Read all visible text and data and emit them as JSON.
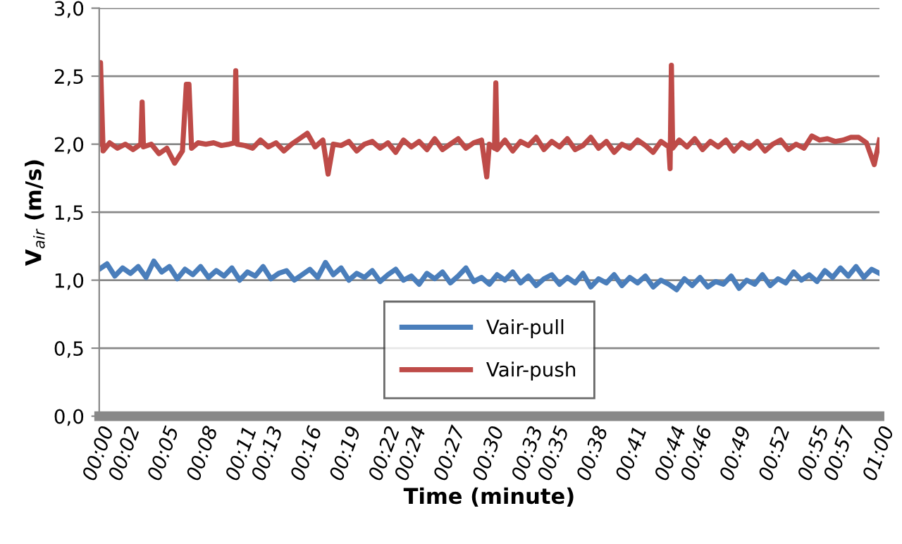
{
  "chart_data": {
    "type": "line",
    "xlabel": "Time (minute)",
    "ylabel": "V$_{air}$ (m/s)",
    "xlim": [
      0,
      60
    ],
    "ylim": [
      0,
      3
    ],
    "xticks": [
      {
        "value": 0,
        "label": "00:00"
      },
      {
        "value": 2,
        "label": "00:02"
      },
      {
        "value": 5,
        "label": "00:05"
      },
      {
        "value": 8,
        "label": "00:08"
      },
      {
        "value": 11,
        "label": "00:11"
      },
      {
        "value": 13,
        "label": "00:13"
      },
      {
        "value": 16,
        "label": "00:16"
      },
      {
        "value": 19,
        "label": "00:19"
      },
      {
        "value": 22,
        "label": "00:22"
      },
      {
        "value": 24,
        "label": "00:24"
      },
      {
        "value": 27,
        "label": "00:27"
      },
      {
        "value": 30,
        "label": "00:30"
      },
      {
        "value": 33,
        "label": "00:33"
      },
      {
        "value": 35,
        "label": "00:35"
      },
      {
        "value": 38,
        "label": "00:38"
      },
      {
        "value": 41,
        "label": "00:41"
      },
      {
        "value": 44,
        "label": "00:44"
      },
      {
        "value": 46,
        "label": "00:46"
      },
      {
        "value": 49,
        "label": "00:49"
      },
      {
        "value": 52,
        "label": "00:52"
      },
      {
        "value": 55,
        "label": "00:55"
      },
      {
        "value": 57,
        "label": "00:57"
      },
      {
        "value": 60,
        "label": "01:00"
      }
    ],
    "yticks": [
      {
        "value": 0,
        "label": "0,0"
      },
      {
        "value": 0.5,
        "label": "0,5"
      },
      {
        "value": 1,
        "label": "1,0"
      },
      {
        "value": 1.5,
        "label": "1,5"
      },
      {
        "value": 2,
        "label": "2,0"
      },
      {
        "value": 2.5,
        "label": "2,5"
      },
      {
        "value": 3,
        "label": "3,0"
      }
    ],
    "grid": "y",
    "legend": "bottom",
    "marker": "none",
    "line_style": "solid",
    "series": [
      {
        "name": "Vair-pull",
        "color": "#4a7ebb",
        "x": [
          0,
          0.6,
          1.2,
          1.8,
          2.4,
          3.0,
          3.6,
          4.2,
          4.8,
          5.4,
          6.0,
          6.6,
          7.2,
          7.8,
          8.4,
          9.0,
          9.6,
          10.2,
          10.8,
          11.4,
          12.0,
          12.6,
          13.2,
          13.8,
          14.4,
          15.0,
          15.6,
          16.2,
          16.8,
          17.4,
          18.0,
          18.6,
          19.2,
          19.8,
          20.4,
          21.0,
          21.6,
          22.2,
          22.8,
          23.4,
          24.0,
          24.6,
          25.2,
          25.8,
          26.4,
          27.0,
          27.6,
          28.2,
          28.8,
          29.4,
          30.0,
          30.6,
          31.2,
          31.8,
          32.4,
          33.0,
          33.6,
          34.2,
          34.8,
          35.4,
          36.0,
          36.6,
          37.2,
          37.8,
          38.4,
          39.0,
          39.6,
          40.2,
          40.8,
          41.4,
          42.0,
          42.6,
          43.2,
          43.8,
          44.4,
          45.0,
          45.6,
          46.2,
          46.8,
          47.4,
          48.0,
          48.6,
          49.2,
          49.8,
          50.4,
          51.0,
          51.6,
          52.2,
          52.8,
          53.4,
          54.0,
          54.6,
          55.2,
          55.8,
          56.4,
          57.0,
          57.6,
          58.2,
          58.8,
          59.4,
          60.0
        ],
        "values": [
          1.08,
          1.12,
          1.03,
          1.09,
          1.05,
          1.1,
          1.02,
          1.14,
          1.06,
          1.1,
          1.01,
          1.08,
          1.04,
          1.1,
          1.02,
          1.07,
          1.03,
          1.09,
          1.0,
          1.06,
          1.03,
          1.1,
          1.01,
          1.05,
          1.07,
          1.0,
          1.04,
          1.08,
          1.02,
          1.13,
          1.04,
          1.09,
          1.0,
          1.05,
          1.02,
          1.07,
          0.99,
          1.04,
          1.08,
          1.0,
          1.03,
          0.97,
          1.05,
          1.01,
          1.06,
          0.98,
          1.03,
          1.09,
          0.99,
          1.02,
          0.97,
          1.04,
          1.0,
          1.06,
          0.98,
          1.03,
          0.96,
          1.01,
          1.04,
          0.97,
          1.02,
          0.98,
          1.05,
          0.95,
          1.01,
          0.98,
          1.04,
          0.96,
          1.02,
          0.98,
          1.03,
          0.95,
          1.0,
          0.97,
          0.93,
          1.01,
          0.96,
          1.02,
          0.95,
          0.99,
          0.97,
          1.03,
          0.94,
          1.0,
          0.97,
          1.04,
          0.96,
          1.01,
          0.98,
          1.06,
          1.0,
          1.04,
          0.99,
          1.07,
          1.02,
          1.09,
          1.03,
          1.1,
          1.02,
          1.08,
          1.05
        ]
      },
      {
        "name": "Vair-push",
        "color": "#be4b48",
        "x": [
          0,
          0.1,
          0.3,
          0.8,
          1.4,
          2.0,
          2.6,
          3.2,
          3.3,
          3.4,
          4.0,
          4.6,
          5.2,
          5.8,
          6.4,
          6.7,
          6.9,
          7.1,
          7.6,
          8.2,
          8.8,
          9.4,
          10.0,
          10.4,
          10.5,
          10.6,
          11.2,
          11.8,
          12.4,
          13.0,
          13.6,
          14.2,
          14.8,
          15.4,
          16.0,
          16.6,
          17.2,
          17.6,
          18.0,
          18.6,
          19.2,
          19.8,
          20.4,
          21.0,
          21.6,
          22.2,
          22.8,
          23.4,
          24.0,
          24.6,
          25.2,
          25.8,
          26.4,
          27.0,
          27.6,
          28.2,
          28.8,
          29.4,
          29.8,
          30.0,
          30.4,
          30.5,
          30.6,
          31.2,
          31.8,
          32.4,
          33.0,
          33.6,
          34.2,
          34.8,
          35.4,
          36.0,
          36.6,
          37.2,
          37.8,
          38.4,
          39.0,
          39.6,
          40.2,
          40.8,
          41.4,
          42.0,
          42.6,
          43.2,
          43.8,
          43.9,
          44.0,
          44.1,
          44.6,
          45.2,
          45.8,
          46.4,
          47.0,
          47.6,
          48.2,
          48.8,
          49.4,
          50.0,
          50.6,
          51.2,
          51.8,
          52.4,
          53.0,
          53.6,
          54.2,
          54.8,
          55.4,
          56.0,
          56.6,
          57.2,
          57.8,
          58.4,
          59.0,
          59.6,
          60.0
        ],
        "values": [
          2.0,
          2.6,
          1.95,
          2.01,
          1.97,
          2.0,
          1.96,
          2.0,
          2.31,
          1.98,
          2.0,
          1.93,
          1.97,
          1.86,
          1.95,
          2.44,
          2.44,
          1.97,
          2.01,
          2.0,
          2.01,
          1.99,
          2.0,
          2.01,
          2.54,
          2.0,
          1.99,
          1.97,
          2.03,
          1.98,
          2.01,
          1.95,
          2.0,
          2.04,
          2.08,
          1.98,
          2.03,
          1.78,
          2.0,
          1.99,
          2.02,
          1.95,
          2.0,
          2.02,
          1.97,
          2.01,
          1.94,
          2.03,
          1.98,
          2.02,
          1.96,
          2.04,
          1.96,
          2.0,
          2.04,
          1.97,
          2.01,
          2.03,
          1.76,
          2.0,
          1.97,
          2.45,
          1.96,
          2.03,
          1.95,
          2.02,
          1.99,
          2.05,
          1.96,
          2.02,
          1.98,
          2.04,
          1.96,
          1.99,
          2.05,
          1.97,
          2.02,
          1.94,
          2.0,
          1.97,
          2.03,
          1.99,
          1.94,
          2.02,
          1.98,
          1.82,
          2.58,
          1.97,
          2.03,
          1.98,
          2.04,
          1.96,
          2.02,
          1.98,
          2.03,
          1.95,
          2.01,
          1.97,
          2.02,
          1.95,
          2.0,
          2.03,
          1.96,
          2.0,
          1.97,
          2.06,
          2.03,
          2.04,
          2.02,
          2.03,
          2.05,
          2.05,
          2.01,
          1.85,
          2.03
        ]
      }
    ]
  }
}
